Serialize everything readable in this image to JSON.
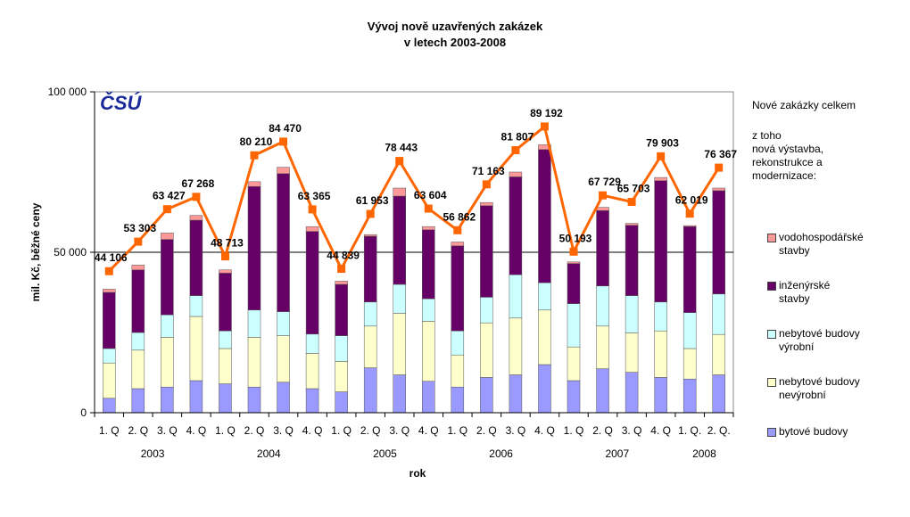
{
  "chart_data": {
    "type": "bar",
    "title_line1": "Vývoj nově uzavřených zakázek",
    "title_line2": "v letech 2003-2008",
    "xlabel": "rok",
    "ylabel": "mil. Kč, běžné ceny",
    "ylim": [
      0,
      100000
    ],
    "yticks": [
      {
        "value": 0,
        "label": "0"
      },
      {
        "value": 50000,
        "label": "50 000"
      },
      {
        "value": 100000,
        "label": "100 000"
      }
    ],
    "logo": "ČSÚ",
    "categories": [
      "1. Q",
      "2. Q",
      "3. Q",
      "4. Q",
      "1. Q",
      "2. Q",
      "3. Q",
      "4. Q",
      "1. Q",
      "2. Q",
      "3. Q",
      "4. Q",
      "1. Q",
      "2. Q",
      "3. Q",
      "4. Q",
      "1. Q",
      "2. Q",
      "3. Q",
      "4. Q",
      "1. Q.",
      "2. Q."
    ],
    "years": [
      {
        "label": "2003",
        "start": 0,
        "end": 3
      },
      {
        "label": "2004",
        "start": 4,
        "end": 7
      },
      {
        "label": "2005",
        "start": 8,
        "end": 11
      },
      {
        "label": "2006",
        "start": 12,
        "end": 15
      },
      {
        "label": "2007",
        "start": 16,
        "end": 19
      },
      {
        "label": "2008",
        "start": 20,
        "end": 21
      }
    ],
    "series": [
      {
        "name": "bytové budovy",
        "color": "#9999ff",
        "values": [
          4500,
          7500,
          8000,
          10000,
          9000,
          8000,
          9500,
          7500,
          6500,
          14000,
          11800,
          9800,
          8000,
          11000,
          11800,
          15000,
          10000,
          13700,
          12600,
          11000,
          10500,
          11800
        ]
      },
      {
        "name": "nebytové budovy nevýrobní",
        "color": "#ffffcc",
        "values": [
          11000,
          12000,
          15500,
          20000,
          11000,
          15500,
          14500,
          11000,
          9500,
          13000,
          19200,
          18700,
          10000,
          17000,
          17700,
          17000,
          10500,
          13300,
          12300,
          14500,
          9500,
          12600
        ]
      },
      {
        "name": "nebytové budovy výrobní",
        "color": "#ccffff",
        "values": [
          4500,
          5500,
          7000,
          6500,
          5500,
          8500,
          7500,
          6000,
          8000,
          7500,
          9000,
          7000,
          7500,
          8000,
          13500,
          8500,
          13500,
          12500,
          11600,
          9000,
          11200,
          12600
        ]
      },
      {
        "name": "inženýrské stavby",
        "color": "#660066",
        "values": [
          17500,
          19500,
          23500,
          23500,
          18000,
          38500,
          43000,
          32000,
          16000,
          20500,
          27500,
          21500,
          26500,
          28500,
          30500,
          41500,
          12500,
          23500,
          21900,
          37800,
          26800,
          32200
        ]
      },
      {
        "name": "vodohospodářské stavby",
        "color": "#ff9999",
        "values": [
          1000,
          1500,
          2000,
          1500,
          1000,
          1500,
          2000,
          1500,
          1000,
          500,
          2500,
          1000,
          1200,
          1000,
          1500,
          1500,
          500,
          1000,
          600,
          1000,
          300,
          800
        ]
      }
    ],
    "total_series": {
      "name": "Nové zakázky celkem",
      "color": "#ff6600",
      "values": [
        44106,
        53303,
        63427,
        67268,
        48713,
        80210,
        84470,
        63365,
        44839,
        61953,
        78443,
        63604,
        56862,
        71163,
        81807,
        89192,
        50193,
        67729,
        65703,
        79903,
        62019,
        76367
      ],
      "labels": [
        "44 106",
        "53 303",
        "63 427",
        "67 268",
        "48 713",
        "80 210",
        "84 470",
        "63 365",
        "44 839",
        "61 953",
        "78 443",
        "63 604",
        "56 862",
        "71 163",
        "81 807",
        "89 192",
        "50 193",
        "67 729",
        "65 703",
        "79 903",
        "62 019",
        "76 367"
      ]
    },
    "legend": {
      "total_label": "Nové zakázky celkem",
      "subheading_lines": [
        "z toho",
        "nová výstavba,",
        "rekonstrukce a",
        "modernizace:"
      ],
      "items": [
        {
          "lines": [
            "vodohospodářské",
            "stavby"
          ],
          "color": "#ff9999"
        },
        {
          "lines": [
            "inženýrské",
            "stavby"
          ],
          "color": "#660066"
        },
        {
          "lines": [
            "nebytové budovy",
            "výrobní"
          ],
          "color": "#ccffff"
        },
        {
          "lines": [
            "nebytové budovy",
            "nevýrobní"
          ],
          "color": "#ffffcc"
        },
        {
          "lines": [
            "bytové budovy"
          ],
          "color": "#9999ff"
        }
      ]
    }
  }
}
